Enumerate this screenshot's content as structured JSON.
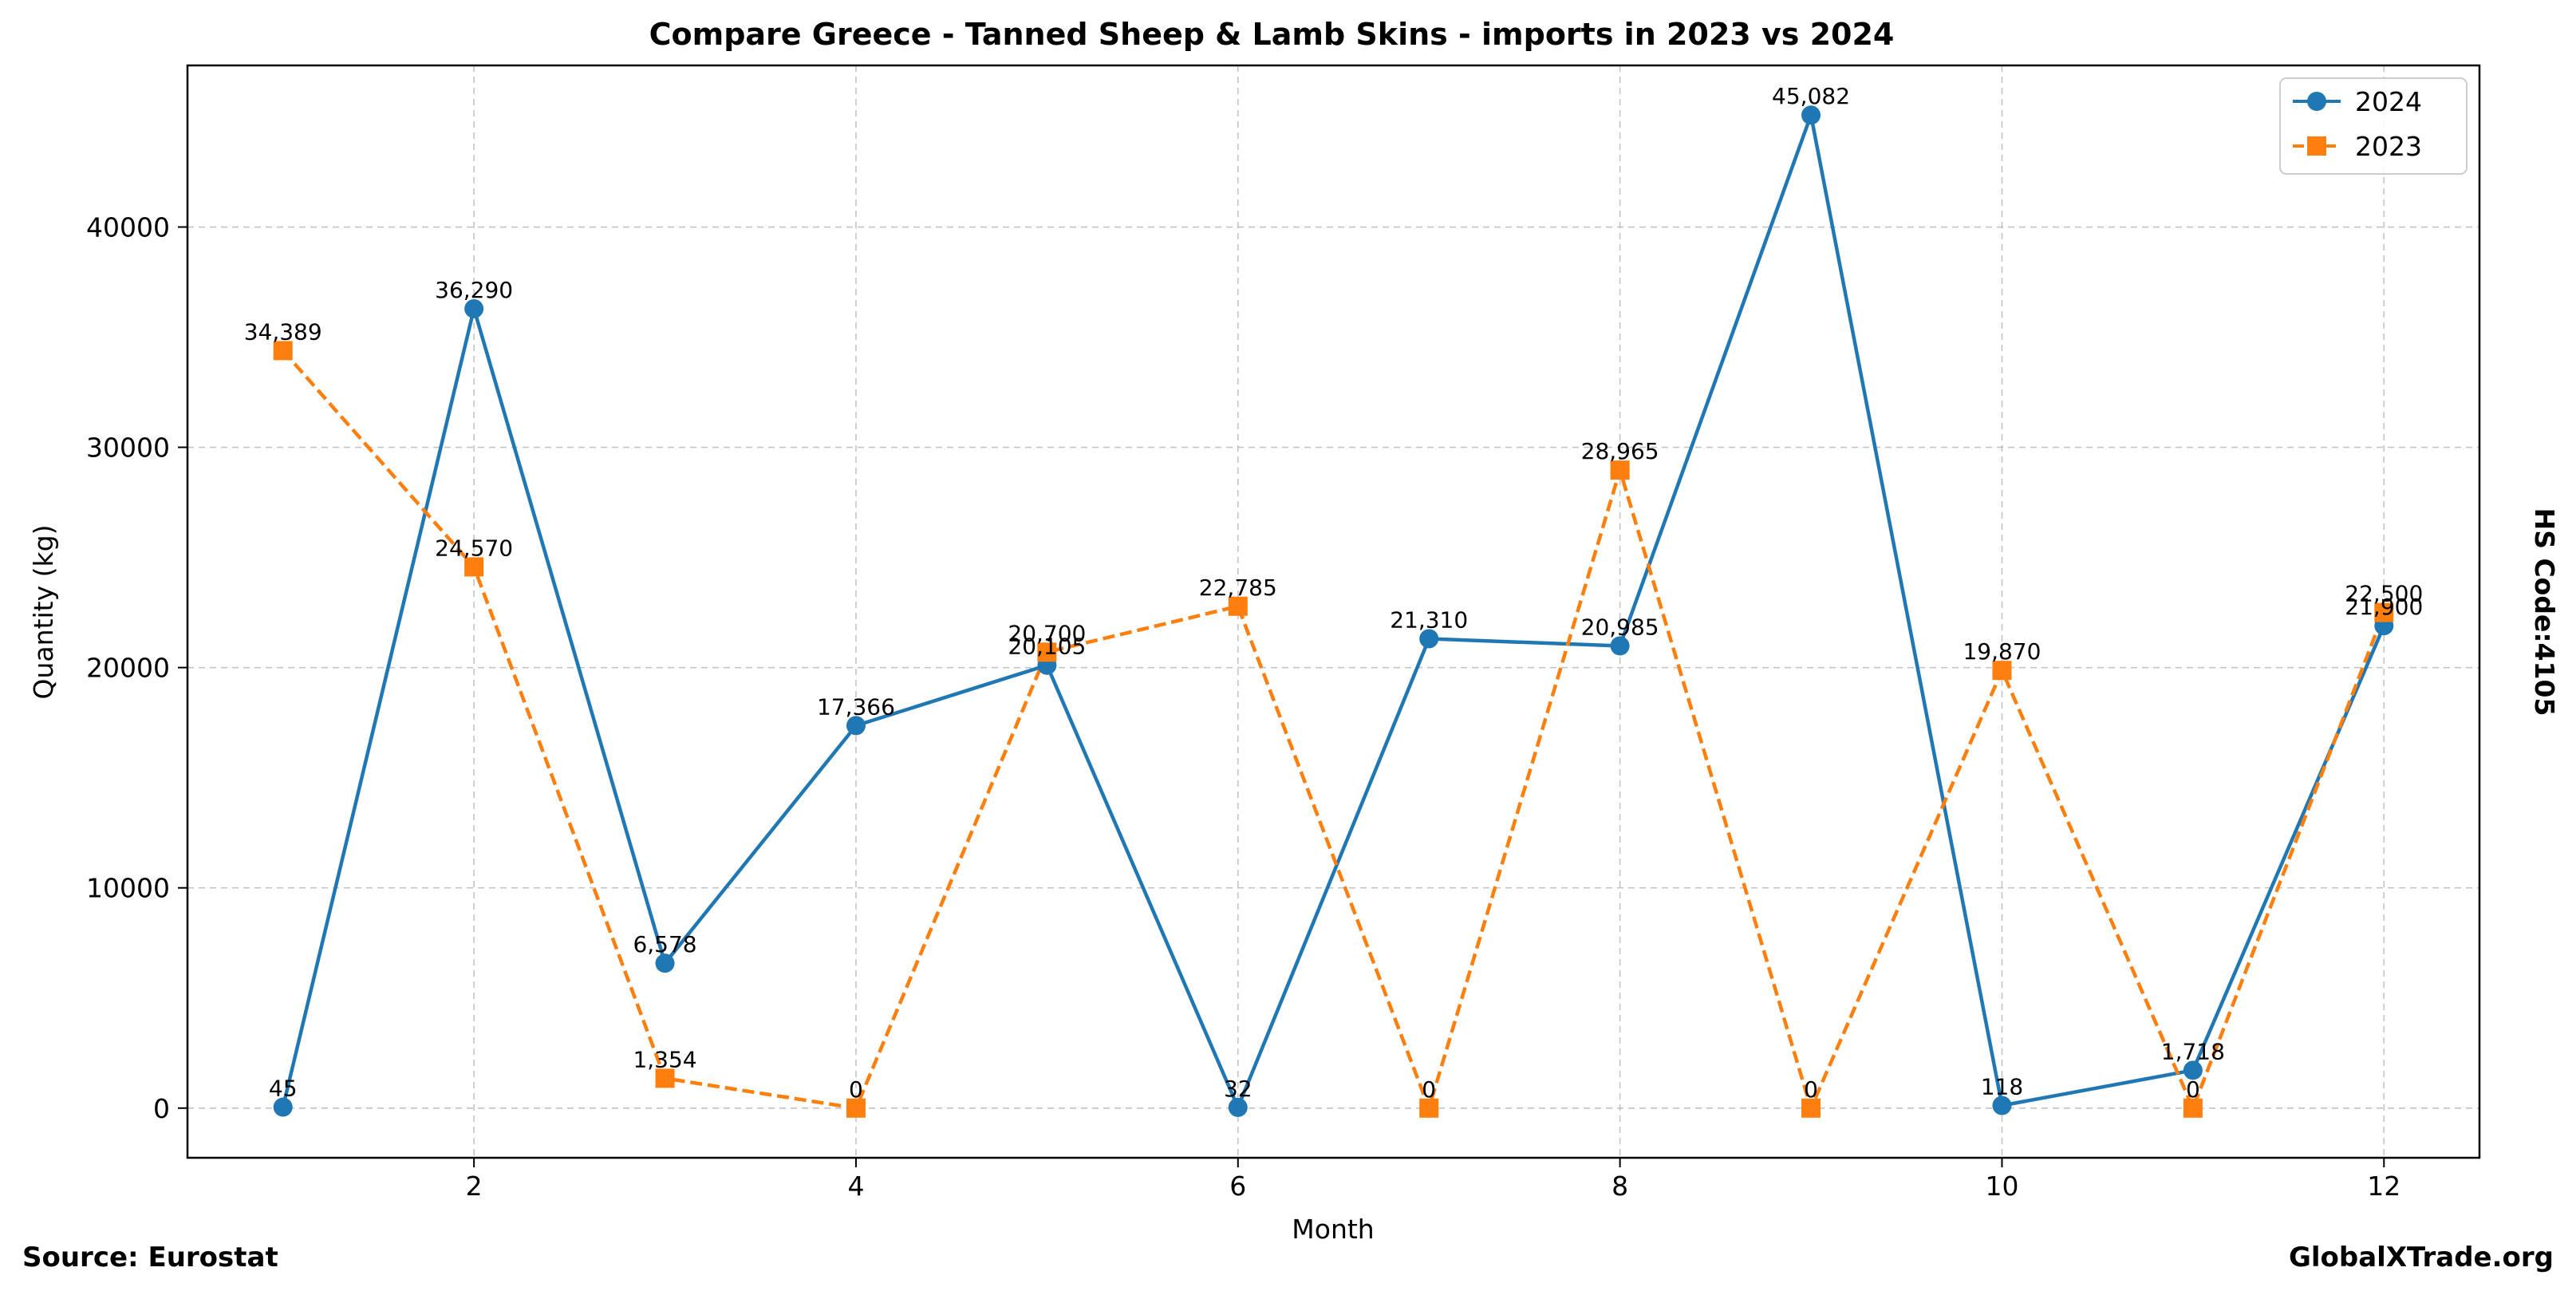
{
  "chart_data": {
    "type": "line",
    "title": "Compare Greece - Tanned Sheep & Lamb Skins - imports in 2023 vs 2024",
    "xlabel": "Month",
    "ylabel": "Quantity (kg)",
    "right_label": "HS Code:4105",
    "source": "Source: Eurostat",
    "site": "GlobalXTrade.org",
    "xlim": [
      0.5,
      12.5
    ],
    "ylim": [
      -2254,
      47336
    ],
    "x_ticks": [
      2,
      4,
      6,
      8,
      10,
      12
    ],
    "y_ticks": [
      0,
      10000,
      20000,
      30000,
      40000
    ],
    "grid": true,
    "legend_position": "top-right",
    "x": [
      1,
      2,
      3,
      4,
      5,
      6,
      7,
      8,
      9,
      10,
      11,
      12
    ],
    "series": [
      {
        "name": "2024",
        "color": "#1f77b4",
        "marker": "circle",
        "line_style": "solid",
        "values": [
          45,
          36290,
          6578,
          17366,
          20105,
          32,
          21310,
          20985,
          45082,
          118,
          1718,
          21900
        ],
        "labels": [
          "45",
          "36,290",
          "6,578",
          "17,366",
          "20,105",
          "32",
          "21,310",
          "20,985",
          "45,082",
          "118",
          "1,718",
          "21,900"
        ]
      },
      {
        "name": "2023",
        "color": "#ff7f0e",
        "marker": "square",
        "line_style": "dashed",
        "values": [
          34389,
          24570,
          1354,
          0,
          20700,
          22785,
          0,
          28965,
          0,
          19870,
          0,
          22500
        ],
        "labels": [
          "34,389",
          "24,570",
          "1,354",
          "0",
          "20,700",
          "22,785",
          "0",
          "28,965",
          "0",
          "19,870",
          "0",
          "22,500"
        ]
      }
    ]
  }
}
